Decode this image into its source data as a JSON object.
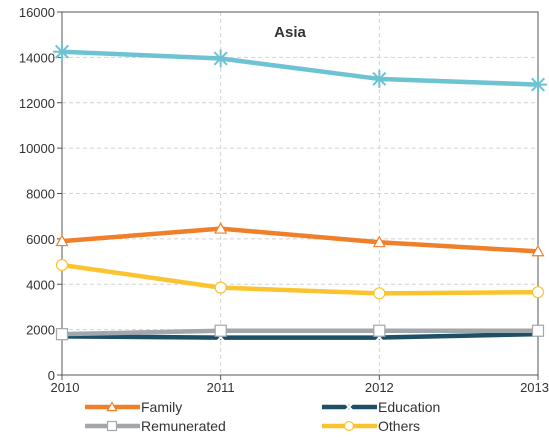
{
  "chart_data": {
    "type": "line",
    "title": "Asia",
    "xlabel": "",
    "ylabel": "",
    "x": [
      "2010",
      "2011",
      "2012",
      "2013"
    ],
    "ylim": [
      0,
      16000
    ],
    "yticks": [
      "0",
      "2000",
      "4000",
      "6000",
      "8000",
      "10000",
      "12000",
      "14000",
      "16000"
    ],
    "grid": true,
    "legend_position": "bottom",
    "series": [
      {
        "name": "Family",
        "values": [
          5900,
          6450,
          5850,
          5450
        ],
        "color": "#f07f2a",
        "marker": "triangle"
      },
      {
        "name": "Education",
        "values": [
          1700,
          1650,
          1650,
          1800
        ],
        "color": "#1d4f66",
        "marker": "x"
      },
      {
        "name": "Remunerated",
        "values": [
          1800,
          1950,
          1950,
          1950
        ],
        "color": "#a2a6ad",
        "marker": "square"
      },
      {
        "name": "Others",
        "values": [
          4850,
          3850,
          3600,
          3650
        ],
        "color": "#f9c430",
        "marker": "circle"
      },
      {
        "name": "",
        "values": [
          14250,
          13950,
          13050,
          12800
        ],
        "color": "#6ec3d3",
        "marker": "asterisk"
      }
    ]
  }
}
